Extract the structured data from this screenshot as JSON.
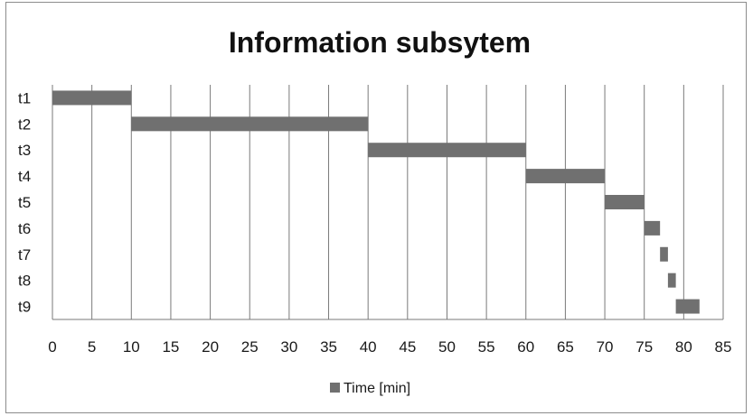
{
  "chart_data": {
    "type": "bar",
    "orientation": "horizontal-gantt",
    "title": "Information subsytem",
    "categories": [
      "t1",
      "t2",
      "t3",
      "t4",
      "t5",
      "t6",
      "t7",
      "t8",
      "t9"
    ],
    "series": [
      {
        "name": "Time [min]",
        "start": [
          0,
          10,
          40,
          60,
          70,
          75,
          77,
          78,
          79
        ],
        "end": [
          10,
          40,
          60,
          70,
          75,
          77,
          78,
          79,
          82
        ]
      }
    ],
    "xlim": [
      0,
      85
    ],
    "x_ticks": [
      0,
      5,
      10,
      15,
      20,
      25,
      30,
      35,
      40,
      45,
      50,
      55,
      60,
      65,
      70,
      75,
      80,
      85
    ],
    "grid": "vertical",
    "legend": "bottom",
    "colors": {
      "bar": "#707070",
      "grid": "#7a7a7a",
      "border": "#8c8c8c"
    }
  }
}
